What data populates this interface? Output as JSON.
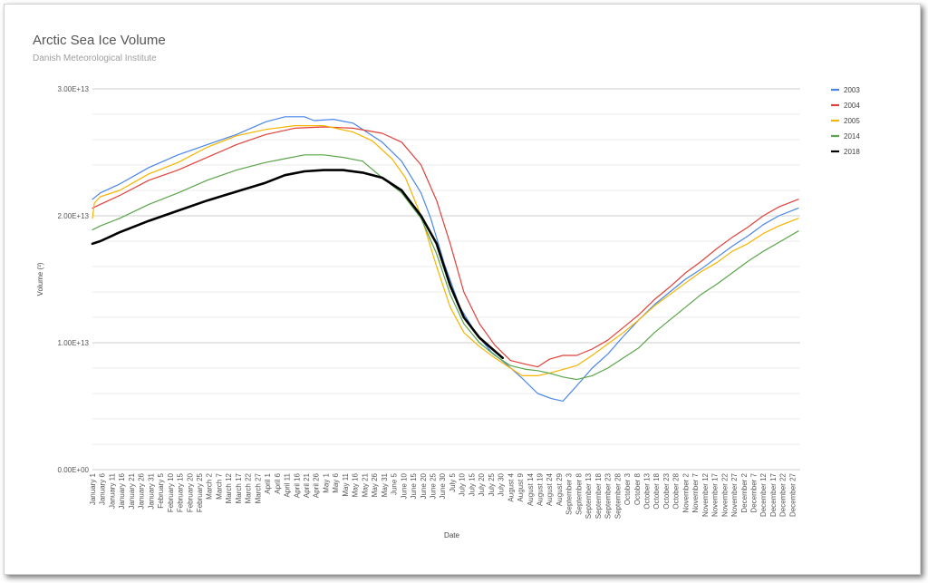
{
  "chart_data": {
    "type": "line",
    "title": "Arctic Sea Ice Volume",
    "subtitle": "Danish Meteorological Institute",
    "xlabel": "Date",
    "ylabel": "Volume (³)",
    "ylim": [
      0,
      30000000000000
    ],
    "yticks": [
      {
        "value": 0,
        "label": "0.00E+00"
      },
      {
        "value": 10000000000000,
        "label": "1.00E+13"
      },
      {
        "value": 20000000000000,
        "label": "2.00E+13"
      },
      {
        "value": 30000000000000,
        "label": "3.00E+13"
      }
    ],
    "ytick_step_units_e12": 10,
    "grid": true,
    "legend_position": "right",
    "xticks": [
      "January 1",
      "January 6",
      "January 11",
      "January 16",
      "January 21",
      "January 26",
      "January 31",
      "February 5",
      "February 10",
      "February 15",
      "February 20",
      "February 25",
      "March 2",
      "March 7",
      "March 12",
      "March 17",
      "March 22",
      "March 27",
      "April 1",
      "April 6",
      "April 11",
      "April 16",
      "April 21",
      "April 26",
      "May 1",
      "May 6",
      "May 11",
      "May 16",
      "May 21",
      "May 26",
      "May 31",
      "June 5",
      "June 10",
      "June 15",
      "June 20",
      "June 25",
      "June 30",
      "July 5",
      "July 10",
      "July 15",
      "July 20",
      "July 25",
      "July 30",
      "August 4",
      "August 9",
      "August 14",
      "August 19",
      "August 24",
      "August 29",
      "September 3",
      "September 8",
      "September 13",
      "September 18",
      "September 23",
      "September 28",
      "October 3",
      "October 8",
      "October 13",
      "October 18",
      "October 23",
      "October 28",
      "November 2",
      "November 7",
      "November 12",
      "November 17",
      "November 22",
      "November 27",
      "December 2",
      "December 7",
      "December 12",
      "December 17",
      "December 22",
      "December 27"
    ],
    "x_units": "day of year",
    "series": [
      {
        "name": "2003",
        "color": "#4a86e8",
        "width": 1.2,
        "points": [
          [
            1,
            21.3
          ],
          [
            5,
            21.8
          ],
          [
            15,
            22.5
          ],
          [
            30,
            23.8
          ],
          [
            45,
            24.8
          ],
          [
            60,
            25.6
          ],
          [
            75,
            26.4
          ],
          [
            90,
            27.4
          ],
          [
            100,
            27.8
          ],
          [
            110,
            27.8
          ],
          [
            115,
            27.5
          ],
          [
            125,
            27.6
          ],
          [
            135,
            27.3
          ],
          [
            140,
            26.8
          ],
          [
            150,
            25.8
          ],
          [
            160,
            24.3
          ],
          [
            170,
            21.8
          ],
          [
            175,
            19.8
          ],
          [
            182,
            16.2
          ],
          [
            190,
            12.8
          ],
          [
            198,
            10.8
          ],
          [
            206,
            9.3
          ],
          [
            214,
            8.3
          ],
          [
            222,
            7.2
          ],
          [
            230,
            6.0
          ],
          [
            237,
            5.6
          ],
          [
            243,
            5.4
          ],
          [
            250,
            6.6
          ],
          [
            258,
            8.0
          ],
          [
            266,
            9.1
          ],
          [
            274,
            10.5
          ],
          [
            282,
            11.8
          ],
          [
            290,
            13.0
          ],
          [
            298,
            14.0
          ],
          [
            306,
            15.0
          ],
          [
            314,
            15.8
          ],
          [
            322,
            16.7
          ],
          [
            330,
            17.6
          ],
          [
            338,
            18.4
          ],
          [
            346,
            19.3
          ],
          [
            354,
            20.0
          ],
          [
            364,
            20.6
          ]
        ]
      },
      {
        "name": "2004",
        "color": "#e0403a",
        "width": 1.2,
        "points": [
          [
            1,
            20.6
          ],
          [
            5,
            20.9
          ],
          [
            15,
            21.6
          ],
          [
            30,
            22.8
          ],
          [
            45,
            23.6
          ],
          [
            60,
            24.6
          ],
          [
            75,
            25.6
          ],
          [
            90,
            26.4
          ],
          [
            105,
            26.9
          ],
          [
            120,
            27.0
          ],
          [
            135,
            26.9
          ],
          [
            150,
            26.5
          ],
          [
            160,
            25.8
          ],
          [
            170,
            24.0
          ],
          [
            178,
            21.2
          ],
          [
            185,
            17.8
          ],
          [
            192,
            14.0
          ],
          [
            200,
            11.5
          ],
          [
            208,
            9.8
          ],
          [
            216,
            8.6
          ],
          [
            224,
            8.3
          ],
          [
            230,
            8.1
          ],
          [
            236,
            8.7
          ],
          [
            243,
            9.0
          ],
          [
            250,
            9.0
          ],
          [
            258,
            9.5
          ],
          [
            266,
            10.2
          ],
          [
            274,
            11.2
          ],
          [
            282,
            12.2
          ],
          [
            290,
            13.4
          ],
          [
            298,
            14.4
          ],
          [
            306,
            15.5
          ],
          [
            314,
            16.4
          ],
          [
            322,
            17.4
          ],
          [
            330,
            18.3
          ],
          [
            338,
            19.1
          ],
          [
            346,
            20.0
          ],
          [
            354,
            20.7
          ],
          [
            364,
            21.3
          ]
        ]
      },
      {
        "name": "2005",
        "color": "#f6b400",
        "width": 1.2,
        "points": [
          [
            1,
            19.8
          ],
          [
            2,
            21.0
          ],
          [
            5,
            21.5
          ],
          [
            15,
            22.0
          ],
          [
            30,
            23.3
          ],
          [
            45,
            24.2
          ],
          [
            60,
            25.4
          ],
          [
            75,
            26.3
          ],
          [
            90,
            26.8
          ],
          [
            105,
            27.1
          ],
          [
            120,
            27.1
          ],
          [
            135,
            26.6
          ],
          [
            145,
            25.9
          ],
          [
            155,
            24.5
          ],
          [
            162,
            23.0
          ],
          [
            170,
            20.0
          ],
          [
            178,
            16.0
          ],
          [
            185,
            12.8
          ],
          [
            192,
            10.8
          ],
          [
            200,
            9.7
          ],
          [
            208,
            8.8
          ],
          [
            216,
            8.0
          ],
          [
            222,
            7.4
          ],
          [
            230,
            7.4
          ],
          [
            236,
            7.6
          ],
          [
            243,
            7.9
          ],
          [
            250,
            8.2
          ],
          [
            258,
            9.0
          ],
          [
            266,
            9.9
          ],
          [
            274,
            10.8
          ],
          [
            282,
            11.8
          ],
          [
            290,
            12.9
          ],
          [
            298,
            13.8
          ],
          [
            306,
            14.7
          ],
          [
            314,
            15.6
          ],
          [
            322,
            16.3
          ],
          [
            330,
            17.2
          ],
          [
            338,
            17.8
          ],
          [
            346,
            18.6
          ],
          [
            354,
            19.2
          ],
          [
            364,
            19.8
          ]
        ]
      },
      {
        "name": "2014",
        "color": "#5aa54a",
        "width": 1.2,
        "points": [
          [
            1,
            18.9
          ],
          [
            5,
            19.2
          ],
          [
            15,
            19.8
          ],
          [
            30,
            20.9
          ],
          [
            45,
            21.8
          ],
          [
            60,
            22.8
          ],
          [
            75,
            23.6
          ],
          [
            90,
            24.2
          ],
          [
            100,
            24.5
          ],
          [
            110,
            24.8
          ],
          [
            120,
            24.8
          ],
          [
            130,
            24.6
          ],
          [
            140,
            24.3
          ],
          [
            150,
            23.0
          ],
          [
            160,
            21.8
          ],
          [
            170,
            19.8
          ],
          [
            178,
            17.0
          ],
          [
            185,
            13.8
          ],
          [
            192,
            11.5
          ],
          [
            200,
            10.0
          ],
          [
            208,
            9.0
          ],
          [
            216,
            8.2
          ],
          [
            224,
            7.9
          ],
          [
            230,
            7.8
          ],
          [
            236,
            7.6
          ],
          [
            243,
            7.3
          ],
          [
            250,
            7.1
          ],
          [
            258,
            7.4
          ],
          [
            266,
            8.0
          ],
          [
            274,
            8.8
          ],
          [
            282,
            9.6
          ],
          [
            290,
            10.8
          ],
          [
            298,
            11.8
          ],
          [
            306,
            12.8
          ],
          [
            314,
            13.8
          ],
          [
            322,
            14.6
          ],
          [
            330,
            15.5
          ],
          [
            338,
            16.4
          ],
          [
            346,
            17.2
          ],
          [
            354,
            17.9
          ],
          [
            364,
            18.8
          ]
        ]
      },
      {
        "name": "2018",
        "color": "#000000",
        "width": 2.6,
        "points": [
          [
            1,
            17.8
          ],
          [
            5,
            18.0
          ],
          [
            15,
            18.7
          ],
          [
            30,
            19.6
          ],
          [
            45,
            20.4
          ],
          [
            60,
            21.2
          ],
          [
            75,
            21.9
          ],
          [
            90,
            22.6
          ],
          [
            100,
            23.2
          ],
          [
            110,
            23.5
          ],
          [
            120,
            23.6
          ],
          [
            130,
            23.6
          ],
          [
            140,
            23.4
          ],
          [
            150,
            23.0
          ],
          [
            160,
            22.0
          ],
          [
            170,
            20.0
          ],
          [
            178,
            17.8
          ],
          [
            185,
            14.5
          ],
          [
            192,
            12.0
          ],
          [
            200,
            10.4
          ],
          [
            206,
            9.6
          ],
          [
            212,
            8.8
          ]
        ]
      }
    ]
  }
}
